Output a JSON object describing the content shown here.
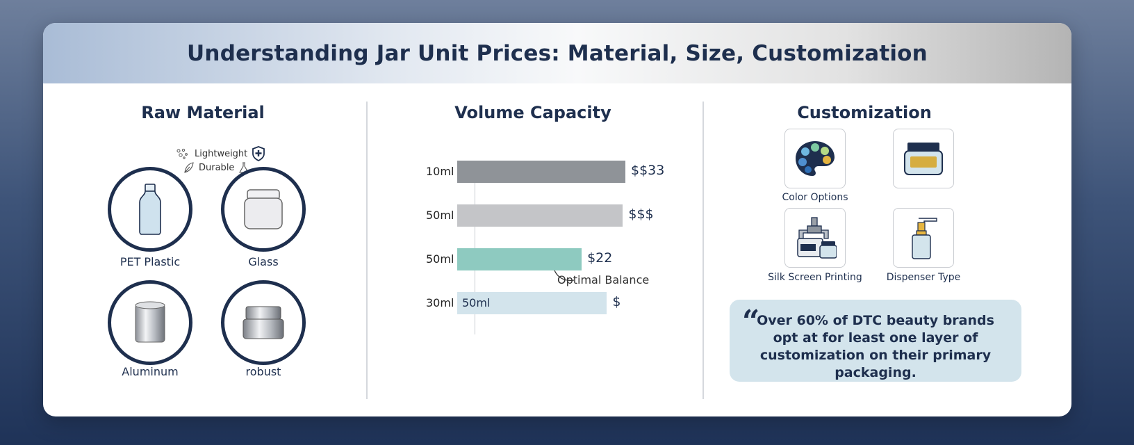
{
  "header": {
    "title": "Understanding Jar Unit Prices: Material, Size, Customization"
  },
  "raw_material": {
    "title": "Raw Material",
    "tags": [
      "Lightweight",
      "Durable"
    ],
    "items": [
      {
        "label": "PET Plastic",
        "icon": "plastic-bottle-icon"
      },
      {
        "label": "Glass",
        "icon": "glass-jar-icon"
      },
      {
        "label": "Aluminum",
        "icon": "aluminum-canister-icon"
      },
      {
        "label": "robust",
        "icon": "metal-jar-icon"
      }
    ]
  },
  "volume": {
    "title": "Volume Capacity",
    "annotation": "Optimal Balance",
    "inner_label": "50ml",
    "rows": [
      {
        "label": "10ml",
        "price": "$$33",
        "value": 100,
        "color": "#8f9398"
      },
      {
        "label": "50ml",
        "price": "$$$",
        "value": 98.5,
        "color": "#c4c5c8"
      },
      {
        "label": "50ml",
        "price": "$22",
        "value": 74,
        "color": "#8ecac0"
      },
      {
        "label": "30ml",
        "price": "$",
        "value": 89,
        "color": "#d3e4ec"
      }
    ]
  },
  "customization": {
    "title": "Customization",
    "items": [
      {
        "label": "Color Options",
        "icon": "color-palette-icon"
      },
      {
        "label": "",
        "icon": "jar-label-icon"
      },
      {
        "label": "Silk Screen Printing",
        "icon": "printing-machine-icon"
      },
      {
        "label": "Dispenser Type",
        "icon": "pump-dispenser-icon"
      }
    ],
    "quote": "Over 60% of DTC beauty brands opt at for least one layer of customization on their primary packaging."
  }
}
